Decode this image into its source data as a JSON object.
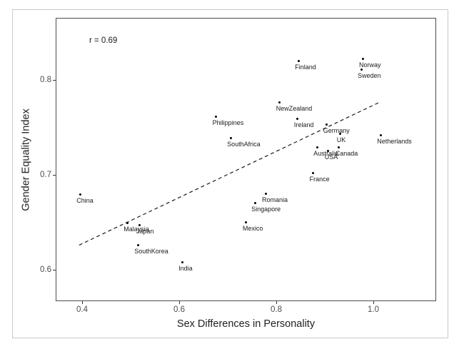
{
  "chart_data": {
    "type": "scatter",
    "title": "",
    "annotation": "r = 0.69",
    "xlabel": "Sex Differences in Personality",
    "ylabel": "Gender Equality Index",
    "xlim": [
      0.3456,
      1.1294
    ],
    "ylim": [
      0.5669,
      0.8654
    ],
    "x_ticks": [
      0.4,
      0.6,
      0.8,
      1.0
    ],
    "y_ticks": [
      0.6,
      0.7,
      0.8
    ],
    "grid": false,
    "legend": false,
    "marker_color": "#000000",
    "trendline": {
      "style": "dashed",
      "x1": 0.394,
      "y1": 0.626,
      "x2": 1.015,
      "y2": 0.777,
      "color": "#1a1a1a"
    },
    "points": [
      {
        "label": "China",
        "x": 0.396,
        "y": 0.679
      },
      {
        "label": "Malaysia",
        "x": 0.493,
        "y": 0.649
      },
      {
        "label": "Japan",
        "x": 0.519,
        "y": 0.647
      },
      {
        "label": "SouthKorea",
        "x": 0.515,
        "y": 0.626
      },
      {
        "label": "India",
        "x": 0.606,
        "y": 0.608
      },
      {
        "label": "Mexico",
        "x": 0.738,
        "y": 0.65
      },
      {
        "label": "Singapore",
        "x": 0.756,
        "y": 0.67
      },
      {
        "label": "Romania",
        "x": 0.778,
        "y": 0.68
      },
      {
        "label": "France",
        "x": 0.876,
        "y": 0.702
      },
      {
        "label": "Philippines",
        "x": 0.676,
        "y": 0.761
      },
      {
        "label": "SouthAfrica",
        "x": 0.706,
        "y": 0.739
      },
      {
        "label": "NewZealand",
        "x": 0.807,
        "y": 0.776
      },
      {
        "label": "Ireland",
        "x": 0.844,
        "y": 0.759
      },
      {
        "label": "Finland",
        "x": 0.846,
        "y": 0.82
      },
      {
        "label": "Germany",
        "x": 0.904,
        "y": 0.753
      },
      {
        "label": "UK",
        "x": 0.932,
        "y": 0.743
      },
      {
        "label": "Australia",
        "x": 0.884,
        "y": 0.729
      },
      {
        "label": "USA",
        "x": 0.907,
        "y": 0.725
      },
      {
        "label": "Canada",
        "x": 0.929,
        "y": 0.729
      },
      {
        "label": "Netherlands",
        "x": 1.015,
        "y": 0.742
      },
      {
        "label": "Norway",
        "x": 0.978,
        "y": 0.822
      },
      {
        "label": "Sweden",
        "x": 0.975,
        "y": 0.811
      }
    ]
  }
}
